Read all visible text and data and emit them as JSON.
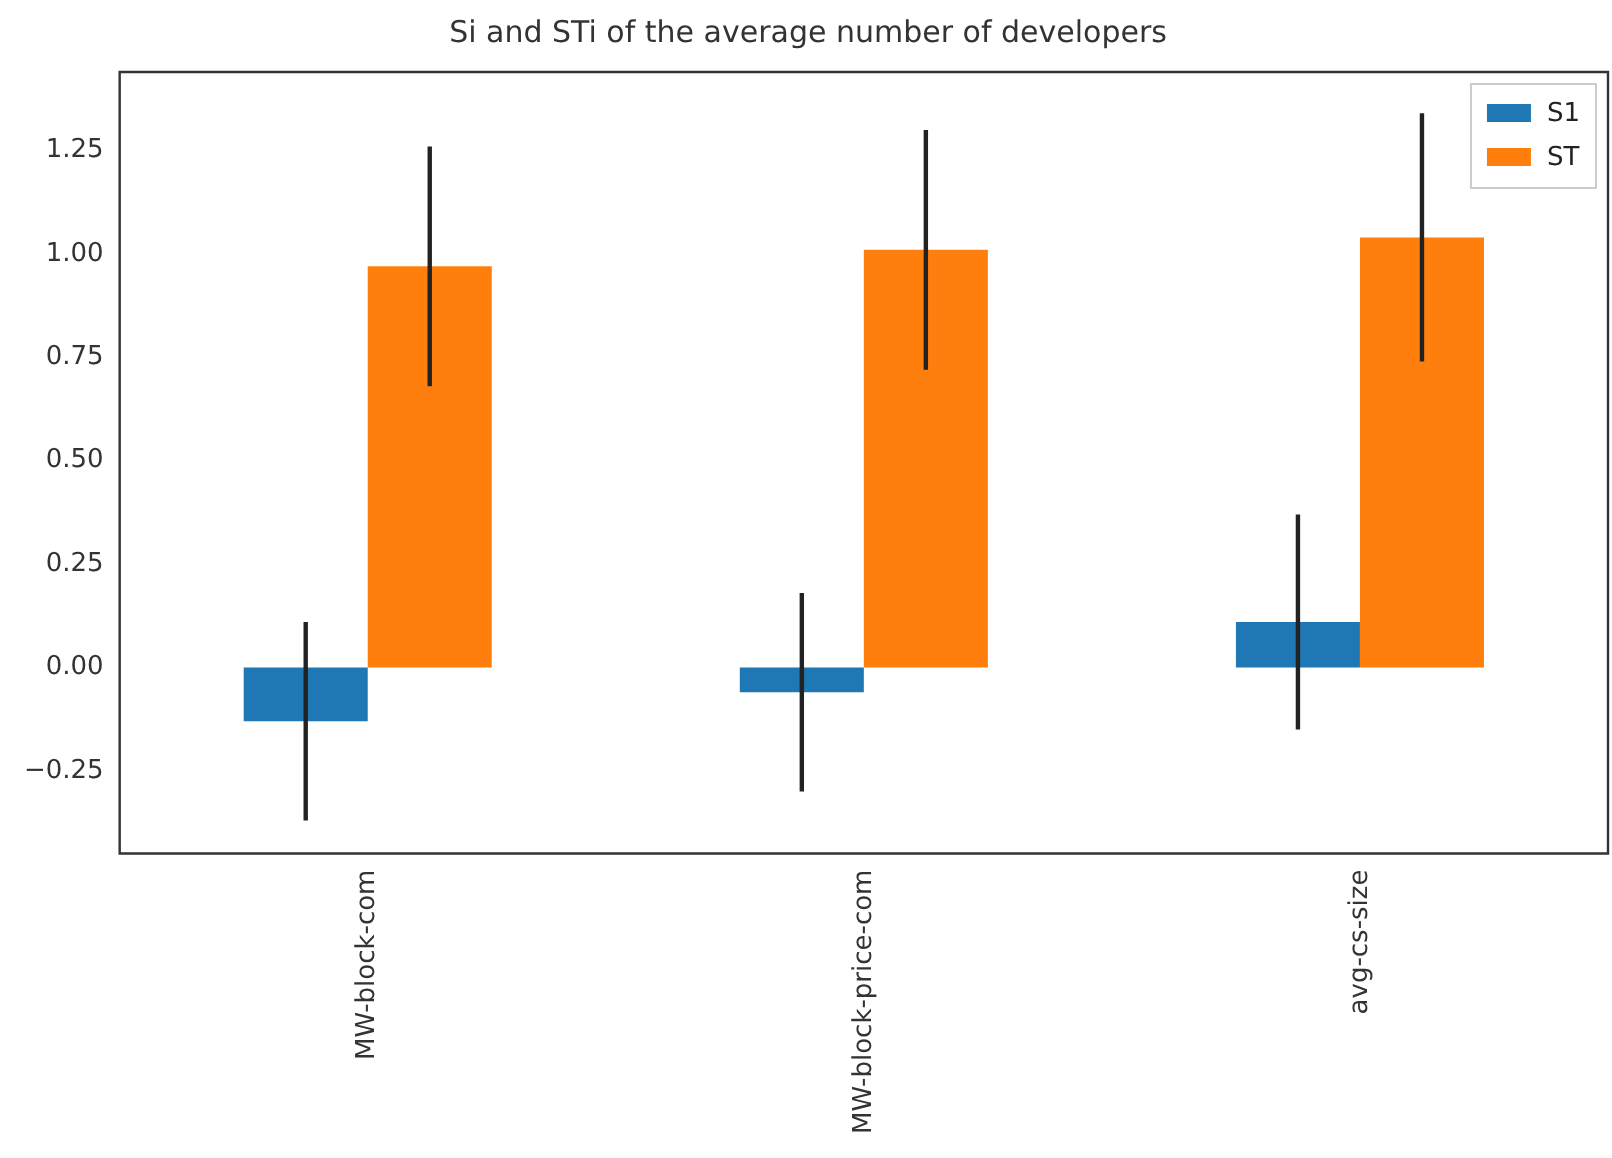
{
  "chart_data": {
    "type": "bar",
    "title": "Si and STi of the average number of developers",
    "categories": [
      "MW-block-com",
      "MW-block-price-com",
      "avg-cs-size"
    ],
    "series": [
      {
        "name": "S1",
        "color": "#1f77b4",
        "values": [
          -0.13,
          -0.06,
          0.11
        ],
        "errors": [
          0.24,
          0.24,
          0.26
        ]
      },
      {
        "name": "ST",
        "color": "#ff7f0e",
        "values": [
          0.97,
          1.01,
          1.04
        ],
        "errors": [
          0.29,
          0.29,
          0.3
        ]
      }
    ],
    "ylim": [
      -0.45,
      1.44
    ],
    "yticks": [
      {
        "value": -0.25,
        "label": "−0.25"
      },
      {
        "value": 0,
        "label": "0.00"
      },
      {
        "value": 0.25,
        "label": "0.25"
      },
      {
        "value": 0.5,
        "label": "0.50"
      },
      {
        "value": 0.75,
        "label": "0.75"
      },
      {
        "value": 1,
        "label": "1.00"
      },
      {
        "value": 1.25,
        "label": "1.25"
      }
    ],
    "grid": false,
    "legend": "top right"
  }
}
